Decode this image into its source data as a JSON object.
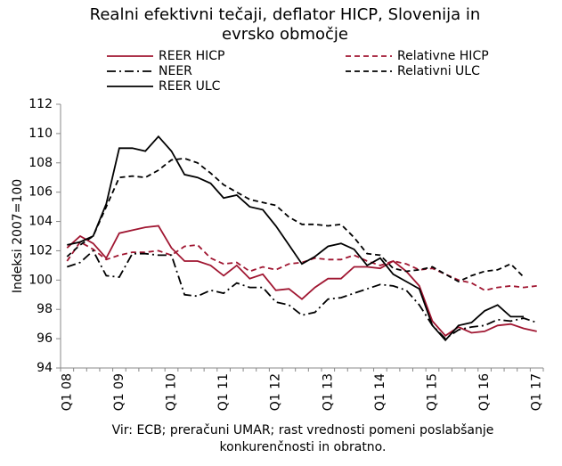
{
  "chart_data": {
    "type": "line",
    "title": "Realni efektivni tečaji, deflator HICP, Slovenija in evrsko območje",
    "y_label": "Indeksi 2007=100",
    "source": "Vir: ECB; preračuni UMAR; rast vrednosti pomeni poslabšanje konkurenčnosti in obratno.",
    "categories": [
      "Q1 08",
      null,
      null,
      null,
      "Q1 09",
      null,
      null,
      null,
      "Q1 10",
      null,
      null,
      null,
      "Q1 11",
      null,
      null,
      null,
      "Q1 12",
      null,
      null,
      null,
      "Q1 13",
      null,
      null,
      null,
      "Q1 14",
      null,
      null,
      null,
      "Q1 15",
      null,
      null,
      null,
      "Q1 16",
      null,
      null,
      null,
      "Q1 17"
    ],
    "ylim": [
      94,
      112
    ],
    "yticks": [
      94,
      96,
      98,
      100,
      102,
      104,
      106,
      108,
      110,
      112
    ],
    "grid": false,
    "series": [
      {
        "name": "REER HICP",
        "color": "#a01631",
        "style": "solid",
        "values": [
          102.2,
          103.0,
          102.5,
          101.5,
          103.2,
          103.4,
          103.6,
          103.7,
          102.2,
          101.3,
          101.3,
          101.0,
          100.3,
          101.0,
          100.1,
          100.4,
          99.3,
          99.4,
          98.7,
          99.5,
          100.1,
          100.1,
          100.9,
          100.9,
          100.8,
          101.3,
          100.6,
          99.6,
          97.2,
          96.2,
          96.8,
          96.4,
          96.5,
          96.9,
          97.0,
          96.7,
          96.5
        ]
      },
      {
        "name": "Relativne HICP",
        "color": "#a01631",
        "style": "dashed",
        "values": [
          101.3,
          102.6,
          102.1,
          101.4,
          101.7,
          101.9,
          101.9,
          102.0,
          101.7,
          102.3,
          102.4,
          101.5,
          101.1,
          101.2,
          100.6,
          100.9,
          100.7,
          101.1,
          101.2,
          101.5,
          101.4,
          101.4,
          101.7,
          101.3,
          101.0,
          101.3,
          101.1,
          100.7,
          100.8,
          100.4,
          100.0,
          99.8,
          99.3,
          99.5,
          99.6,
          99.5,
          99.6
        ]
      },
      {
        "name": "NEER",
        "color": "#000000",
        "style": "dashdot",
        "values": [
          100.9,
          101.2,
          102.0,
          100.3,
          100.2,
          101.8,
          101.8,
          101.7,
          101.7,
          99.0,
          98.9,
          99.3,
          99.1,
          99.8,
          99.5,
          99.5,
          98.5,
          98.3,
          97.6,
          97.8,
          98.7,
          98.8,
          99.1,
          99.4,
          99.7,
          99.6,
          99.3,
          98.3,
          96.9,
          96.0,
          96.6,
          96.8,
          96.9,
          97.3,
          97.2,
          97.4,
          97.1
        ]
      },
      {
        "name": "Relativni ULC",
        "color": "#000000",
        "style": "dashed",
        "values": [
          101.6,
          102.4,
          103.0,
          105.0,
          107.0,
          107.1,
          107.0,
          107.5,
          108.2,
          108.3,
          108.0,
          107.3,
          106.5,
          106.0,
          105.5,
          105.3,
          105.1,
          104.3,
          103.8,
          103.8,
          103.7,
          103.8,
          102.9,
          101.8,
          101.7,
          100.8,
          100.6,
          100.7,
          100.9,
          100.4,
          99.9,
          100.3,
          100.6,
          100.7,
          101.1,
          100.2,
          null
        ]
      },
      {
        "name": "REER ULC",
        "color": "#000000",
        "style": "solid",
        "values": [
          102.4,
          102.6,
          103.0,
          105.2,
          109.0,
          109.0,
          108.8,
          109.8,
          108.8,
          107.2,
          107.0,
          106.6,
          105.6,
          105.8,
          105.0,
          104.8,
          103.7,
          102.4,
          101.1,
          101.6,
          102.3,
          102.5,
          102.1,
          101.0,
          101.5,
          100.4,
          99.9,
          99.4,
          96.9,
          95.9,
          96.9,
          97.1,
          97.9,
          98.3,
          97.5,
          97.5,
          null
        ]
      }
    ]
  }
}
